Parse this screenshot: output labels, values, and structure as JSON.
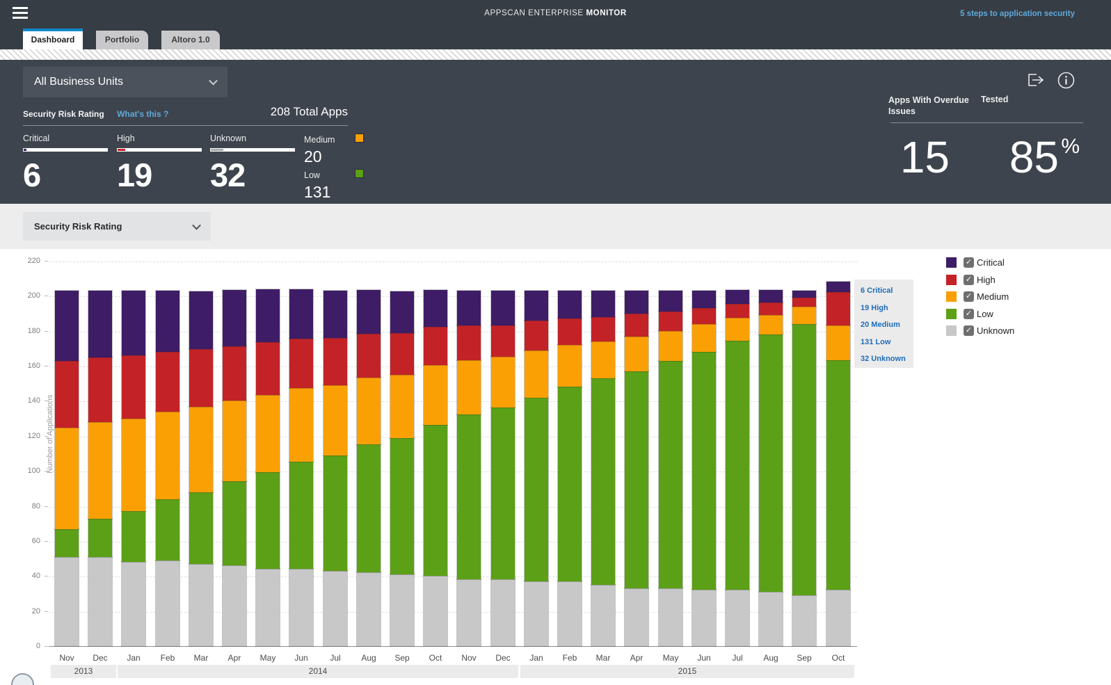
{
  "header": {
    "title_regular": "APPSCAN ENTERPRISE",
    "title_bold": "MONITOR",
    "link": "5 steps to application security"
  },
  "tabs": [
    {
      "label": "Dashboard",
      "active": true
    },
    {
      "label": "Portfolio",
      "active": false
    },
    {
      "label": "Altoro 1.0",
      "active": false
    }
  ],
  "filters": {
    "business_unit": "All Business Units",
    "section_label": "Security Risk Rating",
    "whats_this": "What's this ?",
    "total_apps": "208 Total Apps",
    "chart_group_by": "Security Risk Rating"
  },
  "stats": {
    "total": 208,
    "main": [
      {
        "label": "Critical",
        "value": 6,
        "color": "#3e1c66"
      },
      {
        "label": "High",
        "value": 19,
        "color": "#c32227"
      },
      {
        "label": "Unknown",
        "value": 32,
        "color": "#a9a9a9"
      }
    ],
    "side": [
      {
        "label": "Medium",
        "value": 20,
        "color": "#faa005"
      },
      {
        "label": "Low",
        "value": 131,
        "color": "#5ba016"
      }
    ],
    "overdue": {
      "label": "Apps With Overdue Issues",
      "value": 15
    },
    "tested": {
      "label": "Tested",
      "value": 85,
      "unit": "%"
    }
  },
  "tooltip": {
    "lines": [
      "6 Critical",
      "19 High",
      "20 Medium",
      "131 Low",
      "32 Unknown"
    ]
  },
  "legend": [
    {
      "label": "Critical",
      "color": "#3e1c66",
      "checked": true
    },
    {
      "label": "High",
      "color": "#c32227",
      "checked": true
    },
    {
      "label": "Medium",
      "color": "#faa005",
      "checked": true
    },
    {
      "label": "Low",
      "color": "#5ba016",
      "checked": true
    },
    {
      "label": "Unknown",
      "color": "#c8c8c8",
      "checked": true
    }
  ],
  "chart_data": {
    "type": "bar",
    "stacked": true,
    "title": "",
    "xlabel": "",
    "ylabel": "Number of Applications",
    "ylim": [
      0,
      220
    ],
    "ytick_interval": 20,
    "grid": true,
    "legend_position": "right",
    "categories": [
      "Nov",
      "Dec",
      "Jan",
      "Feb",
      "Mar",
      "Apr",
      "May",
      "Jun",
      "Jul",
      "Aug",
      "Sep",
      "Oct",
      "Nov",
      "Dec",
      "Jan",
      "Feb",
      "Mar",
      "Apr",
      "May",
      "Jun",
      "Jul",
      "Aug",
      "Sep",
      "Oct"
    ],
    "year_groups": [
      {
        "label": "2013",
        "from": 0,
        "to": 1
      },
      {
        "label": "2014",
        "from": 2,
        "to": 13
      },
      {
        "label": "2015",
        "from": 14,
        "to": 23
      }
    ],
    "stack_order_bottom_to_top": [
      "Unknown",
      "Low",
      "Medium",
      "High",
      "Critical"
    ],
    "series": [
      {
        "name": "Unknown",
        "color": "#c8c8c8",
        "values": [
          51,
          51,
          48,
          49,
          47,
          46,
          44,
          44,
          43,
          42,
          41,
          40,
          38,
          38,
          37,
          37,
          35,
          33,
          33,
          32,
          32,
          31,
          29,
          32
        ]
      },
      {
        "name": "Low",
        "color": "#5ba016",
        "values": [
          16,
          22,
          29,
          35,
          41,
          48,
          55,
          61,
          66,
          73,
          78,
          86,
          94,
          98,
          105,
          111,
          118,
          124,
          130,
          136,
          142,
          147,
          155,
          131
        ]
      },
      {
        "name": "Medium",
        "color": "#faa005",
        "values": [
          58,
          55,
          53,
          50,
          49,
          46,
          44,
          42,
          40,
          38,
          36,
          34,
          31,
          29,
          27,
          24,
          21,
          20,
          17,
          16,
          13,
          11,
          10,
          20
        ]
      },
      {
        "name": "High",
        "color": "#c32227",
        "values": [
          38,
          37,
          36,
          34,
          33,
          31,
          30,
          28,
          27,
          25,
          24,
          22,
          20,
          18,
          17,
          15,
          14,
          13,
          11,
          9,
          8,
          7,
          5,
          19
        ]
      },
      {
        "name": "Critical",
        "color": "#3e1c66",
        "values": [
          40,
          38,
          37,
          35,
          33,
          32,
          30,
          28,
          27,
          25,
          24,
          21,
          20,
          20,
          17,
          16,
          15,
          13,
          12,
          10,
          8,
          7,
          4,
          6
        ]
      }
    ],
    "totals_note": [
      203,
      203,
      203,
      203,
      203,
      203,
      203,
      203,
      203,
      203,
      203,
      203,
      203,
      203,
      203,
      203,
      203,
      203,
      203,
      203,
      203,
      203,
      203,
      208
    ]
  }
}
